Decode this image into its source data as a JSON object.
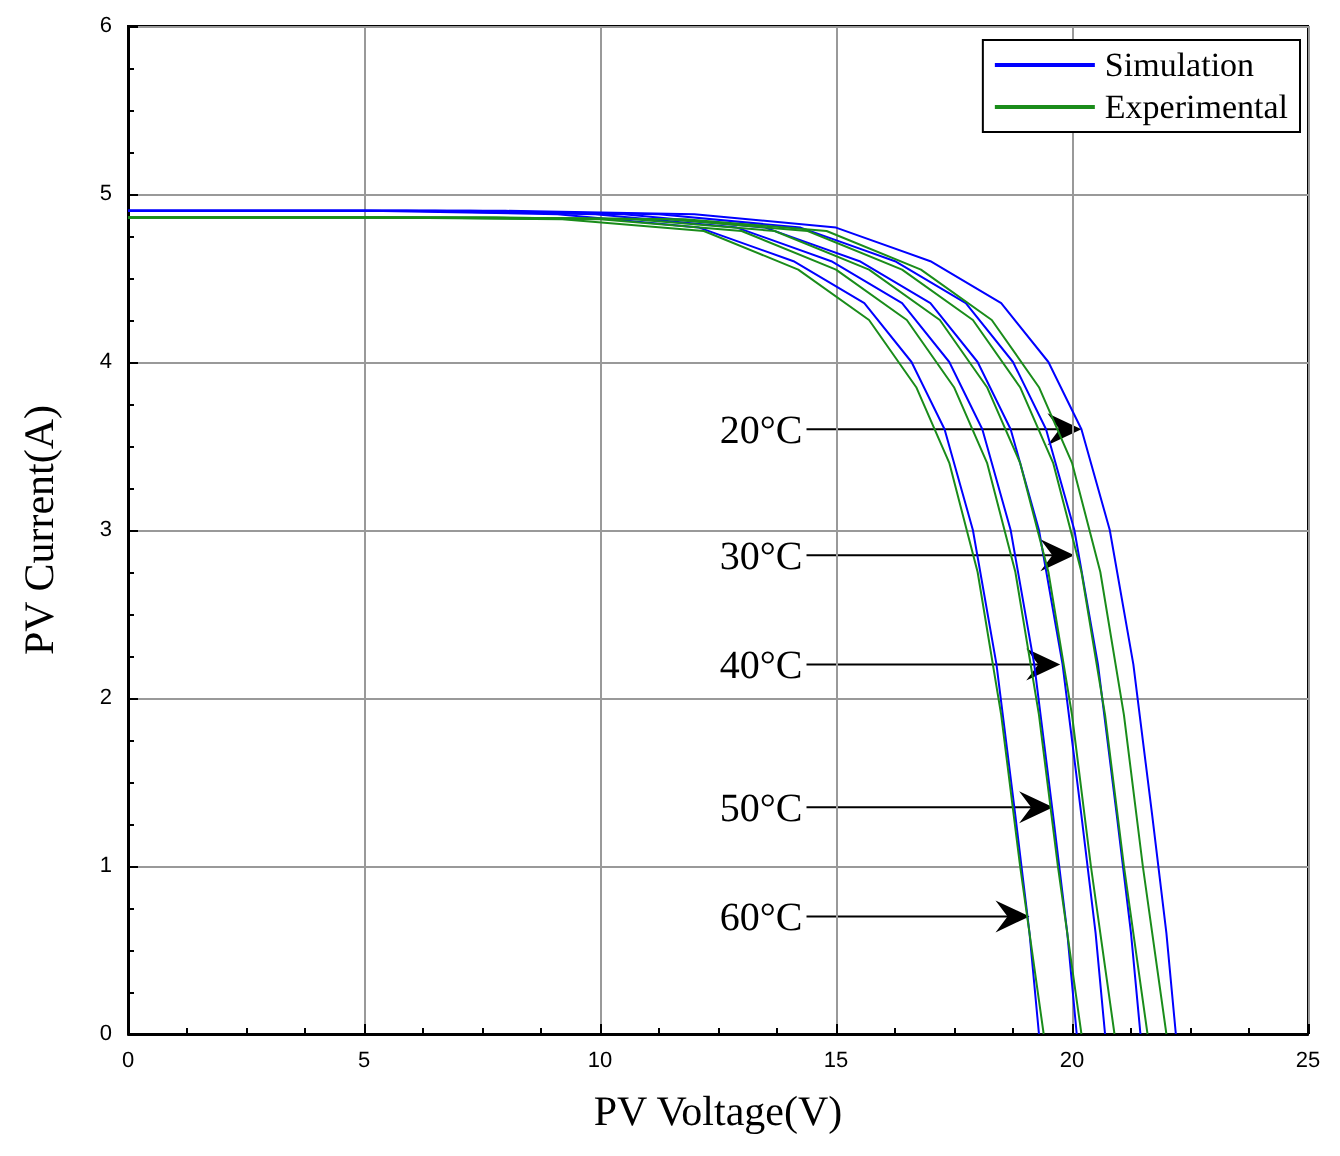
{
  "chart_data": {
    "type": "line",
    "xlabel": "PV Voltage(V)",
    "ylabel": "PV Current(A)",
    "xlim": [
      0,
      25
    ],
    "xticks": [
      0,
      5,
      10,
      15,
      20,
      25
    ],
    "ylim": [
      0,
      6
    ],
    "yticks": [
      0,
      1,
      2,
      3,
      4,
      5,
      6
    ],
    "grid": true,
    "legend": "top right",
    "marker": "none",
    "line_style": "solid",
    "series": [
      {
        "name": "Simulation",
        "color": "#0000ff",
        "x": [
          0,
          8,
          12,
          15,
          17,
          18.5,
          19.5,
          20.2,
          20.8,
          21.3,
          21.7,
          22.0,
          22.2
        ],
        "values": [
          4.9,
          4.9,
          4.88,
          4.8,
          4.6,
          4.35,
          4.0,
          3.6,
          3.0,
          2.2,
          1.3,
          0.6,
          0
        ]
      },
      {
        "color": "#0000ff",
        "x": [
          0,
          7.25,
          11.25,
          14.25,
          16.25,
          17.75,
          18.75,
          19.45,
          20.05,
          20.55,
          20.95,
          21.25,
          21.45
        ],
        "values": [
          4.9,
          4.9,
          4.88,
          4.8,
          4.6,
          4.35,
          4.0,
          3.6,
          3.0,
          2.2,
          1.3,
          0.6,
          0
        ]
      },
      {
        "color": "#0000ff",
        "x": [
          0,
          6.5,
          10.5,
          13.5,
          15.5,
          17,
          18,
          18.7,
          19.3,
          19.8,
          20.2,
          20.5,
          20.7
        ],
        "values": [
          4.9,
          4.9,
          4.88,
          4.8,
          4.6,
          4.35,
          4.0,
          3.6,
          3.0,
          2.2,
          1.3,
          0.6,
          0
        ]
      },
      {
        "color": "#0000ff",
        "x": [
          0,
          5.9,
          9.9,
          12.9,
          14.9,
          16.4,
          17.4,
          18.1,
          18.7,
          19.2,
          19.6,
          19.9,
          20.1
        ],
        "values": [
          4.9,
          4.9,
          4.88,
          4.8,
          4.6,
          4.35,
          4.0,
          3.6,
          3.0,
          2.2,
          1.3,
          0.6,
          0
        ]
      },
      {
        "color": "#0000ff",
        "x": [
          0,
          5.1,
          9.1,
          12.1,
          14.1,
          15.6,
          16.6,
          17.3,
          17.9,
          18.4,
          18.8,
          19.1,
          19.3
        ],
        "values": [
          4.9,
          4.9,
          4.88,
          4.8,
          4.6,
          4.35,
          4.0,
          3.6,
          3.0,
          2.2,
          1.3,
          0.6,
          0
        ]
      },
      {
        "name": "Experimental",
        "color": "#1a8c1a",
        "x": [
          0,
          7.8,
          11.8,
          14.8,
          16.8,
          18.3,
          19.3,
          20,
          20.6,
          21.1,
          21.5,
          21.8,
          22
        ],
        "values": [
          4.86,
          4.86,
          4.85,
          4.78,
          4.55,
          4.25,
          3.85,
          3.4,
          2.75,
          1.9,
          1.0,
          0.4,
          0
        ]
      },
      {
        "color": "#1a8c1a",
        "x": [
          0,
          7.4,
          11.4,
          14.4,
          16.4,
          17.9,
          18.9,
          19.6,
          20.2,
          20.7,
          21.1,
          21.4,
          21.6
        ],
        "values": [
          4.86,
          4.86,
          4.85,
          4.78,
          4.55,
          4.25,
          3.85,
          3.4,
          2.75,
          1.9,
          1.0,
          0.4,
          0
        ]
      },
      {
        "color": "#1a8c1a",
        "x": [
          0,
          6.7,
          10.7,
          13.7,
          15.7,
          17.2,
          18.2,
          18.9,
          19.5,
          20,
          20.4,
          20.7,
          20.9
        ],
        "values": [
          4.86,
          4.86,
          4.85,
          4.78,
          4.55,
          4.25,
          3.85,
          3.4,
          2.75,
          1.9,
          1.0,
          0.4,
          0
        ]
      },
      {
        "color": "#1a8c1a",
        "x": [
          0,
          6,
          10,
          13,
          15,
          16.5,
          17.5,
          18.2,
          18.8,
          19.3,
          19.7,
          20,
          20.2
        ],
        "values": [
          4.86,
          4.86,
          4.85,
          4.78,
          4.55,
          4.25,
          3.85,
          3.4,
          2.75,
          1.9,
          1.0,
          0.4,
          0
        ]
      },
      {
        "color": "#1a8c1a",
        "x": [
          0,
          5.2,
          9.2,
          12.2,
          14.2,
          15.7,
          16.7,
          17.4,
          18,
          18.5,
          18.9,
          19.2,
          19.4
        ],
        "values": [
          4.86,
          4.86,
          4.85,
          4.78,
          4.55,
          4.25,
          3.85,
          3.4,
          2.75,
          1.9,
          1.0,
          0.4,
          0
        ]
      }
    ],
    "annotations": [
      {
        "text": "20°C",
        "x": 20.2,
        "y": 3.6
      },
      {
        "text": "30°C",
        "x": 20.05,
        "y": 2.85
      },
      {
        "text": "40°C",
        "x": 19.75,
        "y": 2.2
      },
      {
        "text": "50°C",
        "x": 19.6,
        "y": 1.35
      },
      {
        "text": "60°C",
        "x": 19.1,
        "y": 0.7
      }
    ]
  }
}
